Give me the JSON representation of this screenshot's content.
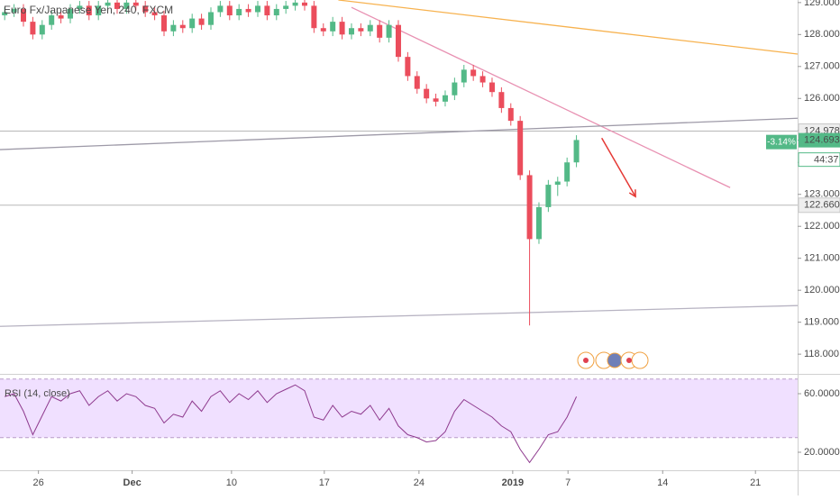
{
  "chart_data": [
    {
      "type": "candlestick",
      "title": "Euro Fx/Japanese Yen, 240, FXCM",
      "up_color": "#53b987",
      "down_color": "#eb4d5c",
      "open": [
        128.6,
        128.7,
        128.8,
        128.4,
        128.0,
        128.3,
        128.6,
        128.5,
        128.8,
        128.9,
        128.6,
        128.9,
        129.0,
        128.8,
        129.0,
        128.9,
        128.7,
        128.6,
        128.1,
        128.3,
        128.2,
        128.5,
        128.3,
        128.7,
        128.9,
        128.6,
        128.8,
        128.7,
        128.9,
        128.6,
        128.8,
        128.9,
        129.0,
        128.9,
        128.2,
        128.1,
        128.4,
        128.0,
        128.2,
        128.1,
        128.3,
        127.9,
        128.3,
        127.3,
        126.7,
        126.3,
        126.0,
        125.9,
        126.1,
        126.5,
        126.9,
        126.7,
        126.5,
        126.2,
        125.7,
        125.3,
        123.6,
        121.6,
        122.6,
        123.3,
        123.4,
        124.0
      ],
      "high": [
        128.85,
        128.95,
        128.95,
        128.55,
        128.45,
        128.75,
        128.75,
        128.95,
        129.05,
        129.05,
        129.05,
        129.15,
        129.15,
        129.15,
        129.15,
        129.05,
        128.85,
        128.75,
        128.45,
        128.45,
        128.65,
        128.65,
        128.85,
        129.05,
        129.05,
        128.95,
        128.95,
        129.05,
        129.05,
        128.95,
        129.05,
        129.15,
        129.15,
        129.05,
        128.35,
        128.55,
        128.55,
        128.35,
        128.35,
        128.45,
        128.45,
        128.45,
        128.45,
        127.45,
        126.85,
        126.45,
        126.15,
        126.25,
        126.65,
        127.05,
        127.05,
        126.85,
        126.65,
        126.35,
        125.85,
        125.45,
        123.75,
        122.75,
        123.45,
        123.55,
        124.15,
        124.85
      ],
      "low": [
        128.45,
        128.55,
        128.25,
        127.85,
        127.85,
        128.15,
        128.35,
        128.35,
        128.65,
        128.45,
        128.45,
        128.75,
        128.65,
        128.65,
        128.75,
        128.55,
        128.45,
        127.95,
        127.95,
        128.05,
        128.05,
        128.15,
        128.15,
        128.55,
        128.45,
        128.45,
        128.55,
        128.55,
        128.45,
        128.45,
        128.65,
        128.75,
        128.75,
        128.05,
        127.95,
        127.95,
        127.85,
        127.85,
        127.95,
        127.95,
        127.75,
        127.75,
        127.15,
        126.55,
        126.15,
        125.85,
        125.75,
        125.75,
        125.95,
        126.35,
        126.55,
        126.35,
        126.05,
        125.55,
        125.15,
        123.45,
        118.9,
        121.45,
        122.45,
        122.95,
        123.25,
        123.85
      ],
      "close": [
        128.7,
        128.8,
        128.4,
        128.0,
        128.3,
        128.6,
        128.5,
        128.8,
        128.9,
        128.6,
        128.9,
        129.0,
        128.8,
        129.0,
        128.9,
        128.7,
        128.6,
        128.1,
        128.3,
        128.2,
        128.5,
        128.3,
        128.7,
        128.9,
        128.6,
        128.8,
        128.7,
        128.9,
        128.6,
        128.8,
        128.9,
        129.0,
        128.9,
        128.2,
        128.1,
        128.4,
        128.0,
        128.2,
        128.1,
        128.3,
        127.9,
        128.3,
        127.3,
        126.7,
        126.3,
        126.0,
        125.9,
        126.1,
        126.5,
        126.9,
        126.7,
        126.5,
        126.2,
        125.7,
        125.3,
        123.6,
        121.6,
        122.6,
        123.3,
        123.4,
        124.0,
        124.7
      ],
      "xlim": [
        -0.5,
        84.6
      ],
      "xticks": [
        {
          "value": 3.6,
          "label": "26"
        },
        {
          "value": 13.6,
          "label": "Dec"
        },
        {
          "value": 24.2,
          "label": "10"
        },
        {
          "value": 34.1,
          "label": "17"
        },
        {
          "value": 44.2,
          "label": "24"
        },
        {
          "value": 54.2,
          "label": "2019"
        },
        {
          "value": 60.1,
          "label": "7"
        },
        {
          "value": 70.2,
          "label": "14"
        },
        {
          "value": 80.1,
          "label": "21"
        }
      ],
      "ylim": [
        117.44,
        129.08
      ],
      "yticks": [
        {
          "value": 118,
          "label": "118.000"
        },
        {
          "value": 119,
          "label": "119.000"
        },
        {
          "value": 120,
          "label": "120.000"
        },
        {
          "value": 121,
          "label": "121.000"
        },
        {
          "value": 122,
          "label": "122.000"
        },
        {
          "value": 123,
          "label": "123.000"
        },
        {
          "value": 124,
          "label": "124.000"
        },
        {
          "value": 125,
          "label": "125.000"
        },
        {
          "value": 126,
          "label": "126.000"
        },
        {
          "value": 127,
          "label": "127.000"
        },
        {
          "value": 128,
          "label": "128.000"
        },
        {
          "value": 129,
          "label": "129.000"
        }
      ],
      "trendlines": [
        {
          "color": "#f7b24f",
          "points": [
            [
              35.6,
              129.08
            ],
            [
              84.6,
              127.39
            ]
          ]
        },
        {
          "color": "#e891b2",
          "points": [
            [
              37.0,
              128.85
            ],
            [
              77.4,
              123.21
            ]
          ]
        },
        {
          "color": "#9e9aa8",
          "points": [
            [
              -0.5,
              124.4
            ],
            [
              84.6,
              125.38
            ]
          ]
        },
        {
          "color": "#b7b3c2",
          "points": [
            [
              -0.5,
              118.87
            ],
            [
              84.6,
              119.52
            ]
          ]
        }
      ],
      "arrow": {
        "color": "#e53935",
        "points": [
          [
            63.7,
            124.76
          ],
          [
            67.3,
            122.93
          ]
        ]
      },
      "hlines": [
        {
          "value": 124.978,
          "label": "124.978"
        },
        {
          "value": 122.66,
          "label": "122.660"
        }
      ],
      "last": {
        "value": 124.693,
        "label": "124.693"
      },
      "change_label": "-3.14%",
      "countdown": "44:37"
    },
    {
      "type": "line",
      "title": "RSI (14, close)",
      "color": "#8e3a8e",
      "values": [
        58,
        60,
        48,
        32,
        45,
        58,
        55,
        60,
        62,
        52,
        58,
        62,
        55,
        60,
        58,
        52,
        50,
        40,
        46,
        44,
        55,
        48,
        58,
        62,
        54,
        60,
        56,
        62,
        54,
        60,
        63,
        66,
        62,
        44,
        42,
        52,
        44,
        48,
        46,
        52,
        42,
        50,
        38,
        32,
        30,
        27,
        28,
        34,
        48,
        56,
        52,
        48,
        44,
        38,
        34,
        22,
        13,
        22,
        32,
        34,
        44,
        58
      ],
      "ylim": [
        7.7,
        71.7
      ],
      "yticks": [
        {
          "value": 60,
          "label": "60.0000"
        },
        {
          "value": 20,
          "label": "20.0000"
        }
      ],
      "bands": [
        30,
        70
      ],
      "band_color": "#f0e0ff"
    }
  ]
}
